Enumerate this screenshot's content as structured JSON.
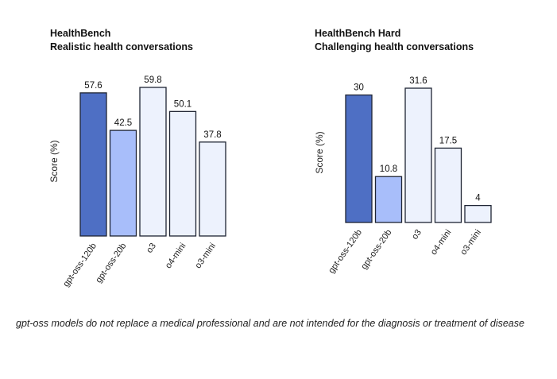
{
  "colors": {
    "bar_outline": "#1e2433",
    "gpt-oss-120b": "#4e6fc4",
    "gpt-oss-20b": "#a8befa",
    "o3": "#edf2fd",
    "o4-mini": "#edf2fd",
    "o3-mini": "#edf2fd",
    "text": "#111111"
  },
  "caption": "gpt-oss models do not replace a medical professional and are not intended for the diagnosis or treatment of disease",
  "chart_data": [
    {
      "type": "bar",
      "title": "HealthBench",
      "subtitle": "Realistic health conversations",
      "ylabel": "Score (%)",
      "xlabel": "",
      "categories": [
        "gpt-oss-120b",
        "gpt-oss-20b",
        "o3",
        "o4-mini",
        "o3-mini"
      ],
      "values": [
        57.6,
        42.5,
        59.8,
        50.1,
        37.8
      ],
      "value_labels": [
        "57.6",
        "42.5",
        "59.8",
        "50.1",
        "37.8"
      ],
      "ylim": [
        0,
        59.8
      ],
      "grid": false,
      "legend": "none"
    },
    {
      "type": "bar",
      "title": "HealthBench Hard",
      "subtitle": "Challenging health conversations",
      "ylabel": "Score (%)",
      "xlabel": "",
      "categories": [
        "gpt-oss-120b",
        "gpt-oss-20b",
        "o3",
        "o4-mini",
        "o3-mini"
      ],
      "values": [
        30,
        10.8,
        31.6,
        17.5,
        4
      ],
      "value_labels": [
        "30",
        "10.8",
        "31.6",
        "17.5",
        "4"
      ],
      "ylim": [
        0,
        31.6
      ],
      "grid": false,
      "legend": "none"
    }
  ]
}
